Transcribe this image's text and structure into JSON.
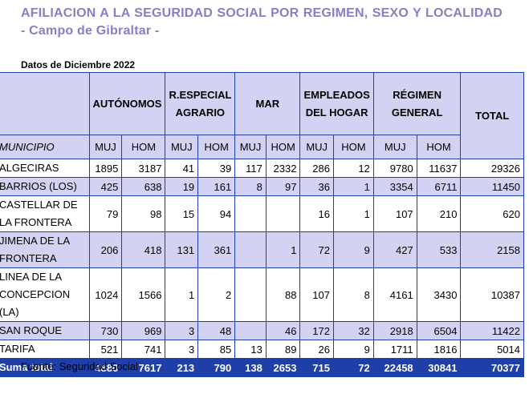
{
  "title": "AFILIACION A LA SEGURIDAD SOCIAL POR REGIMEN, SEXO Y LOCALIDAD - Campo de Gibraltar -",
  "subtitle": "Datos de Diciembre 2022",
  "source": "Fuente: Seguridad Social",
  "colors": {
    "title": "#8E7CC3",
    "header_bg": "#d4d2f2",
    "total_bg": "#1f3fa8",
    "border": "#1f3fa8"
  },
  "table": {
    "groups": [
      "AUTÓNOMOS",
      "R.ESPECIAL AGRARIO",
      "MAR",
      "EMPLEADOS DEL HOGAR",
      "RÉGIMEN GENERAL",
      "TOTAL"
    ],
    "muni_header": "MUNICIPIO",
    "subheaders": [
      "MUJ",
      "HOM",
      "MUJ",
      "HOM",
      "MUJ",
      "HOM",
      "MUJ",
      "HOM",
      "MUJ",
      "HOM"
    ],
    "rows": [
      {
        "name": "ALGECIRAS",
        "cells": [
          "1895",
          "3187",
          "41",
          "39",
          "117",
          "2332",
          "286",
          "12",
          "9780",
          "11637",
          "29326"
        ]
      },
      {
        "name": "BARRIOS (LOS)",
        "cells": [
          "425",
          "638",
          "19",
          "161",
          "8",
          "97",
          "36",
          "1",
          "3354",
          "6711",
          "11450"
        ]
      },
      {
        "name": "CASTELLAR DE LA FRONTERA",
        "cells": [
          "79",
          "98",
          "15",
          "94",
          "",
          "",
          "16",
          "1",
          "107",
          "210",
          "620"
        ]
      },
      {
        "name": "JIMENA DE LA FRONTERA",
        "cells": [
          "206",
          "418",
          "131",
          "361",
          "",
          "1",
          "72",
          "9",
          "427",
          "533",
          "2158"
        ]
      },
      {
        "name": "LINEA DE LA CONCEPCION (LA)",
        "cells": [
          "1024",
          "1566",
          "1",
          "2",
          "",
          "88",
          "107",
          "8",
          "4161",
          "3430",
          "10387"
        ]
      },
      {
        "name": "SAN ROQUE",
        "cells": [
          "730",
          "969",
          "3",
          "48",
          "",
          "46",
          "172",
          "32",
          "2918",
          "6504",
          "11422"
        ]
      },
      {
        "name": "TARIFA",
        "cells": [
          "521",
          "741",
          "3",
          "85",
          "13",
          "89",
          "26",
          "9",
          "1711",
          "1816",
          "5014"
        ]
      }
    ],
    "total": {
      "name": "Suma total",
      "cells": [
        "4880",
        "7617",
        "213",
        "790",
        "138",
        "2653",
        "715",
        "72",
        "22458",
        "30841",
        "70377"
      ]
    }
  }
}
